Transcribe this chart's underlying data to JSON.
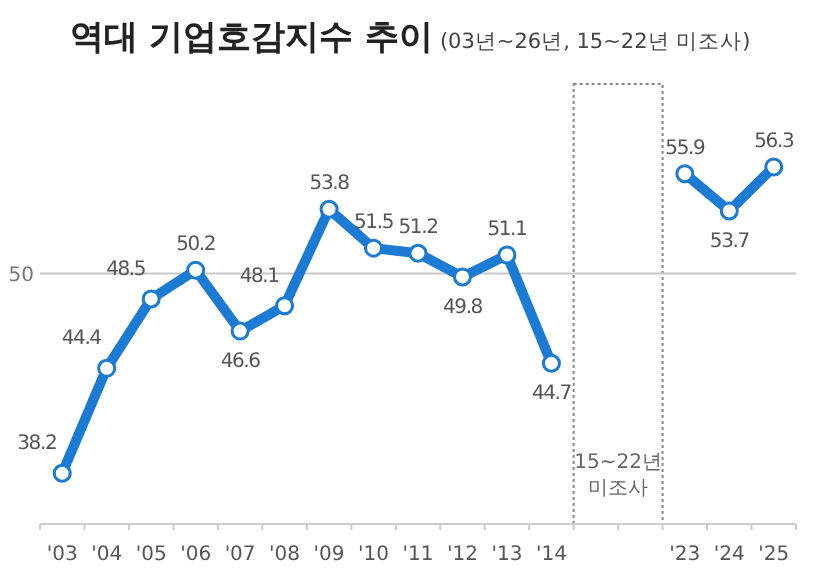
{
  "chart_data": {
    "type": "line",
    "title": "역대 기업호감지수 추이",
    "subtitle": "(03년~26년, 15~22년 미조사)",
    "categories": [
      "'03",
      "'04",
      "'05",
      "'06",
      "'07",
      "'08",
      "'09",
      "'10",
      "'11",
      "'12",
      "'13",
      "'14",
      null,
      null,
      "'23",
      "'24",
      "'25"
    ],
    "series": [
      {
        "color": "#1a7ad4",
        "values": [
          38.2,
          44.4,
          48.5,
          50.2,
          46.6,
          48.1,
          53.8,
          51.5,
          51.2,
          49.8,
          51.1,
          44.7,
          null,
          null,
          55.9,
          53.7,
          56.3
        ]
      }
    ],
    "data_labels": true,
    "marker": "circle",
    "line_style": "solid",
    "grid": false,
    "ref_lines": [
      {
        "axis": "y",
        "value": 50,
        "label": "50",
        "color": "#c8c8c8"
      }
    ],
    "annotations": [
      "15~22년 미조사"
    ]
  }
}
